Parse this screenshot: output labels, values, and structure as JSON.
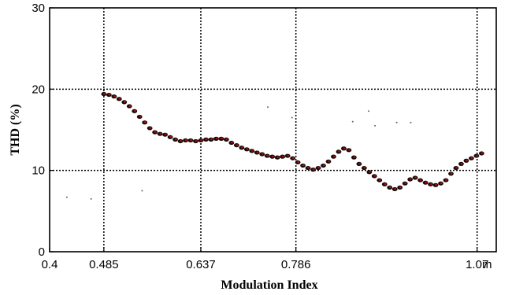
{
  "chart_data": {
    "type": "scatter",
    "title": "",
    "xlabel": "Modulation Index",
    "ylabel": "THD (%)",
    "x_unit_label": "m",
    "xlim": [
      0.4,
      1.1
    ],
    "ylim": [
      0,
      30
    ],
    "x_ticks": [
      0.4,
      0.485,
      0.637,
      0.786,
      1.07
    ],
    "x_tick_labels": [
      "0.4",
      "0.485",
      "0.637",
      "0.786",
      "1.07"
    ],
    "y_ticks": [
      0,
      10,
      20,
      30
    ],
    "y_tick_labels": [
      "0",
      "10",
      "20",
      "30"
    ],
    "grid": true,
    "series": [
      {
        "color": "#1a0a0a",
        "accent_color": "#b01010",
        "x": [
          0.485,
          0.493,
          0.501,
          0.509,
          0.517,
          0.525,
          0.533,
          0.541,
          0.549,
          0.557,
          0.565,
          0.573,
          0.581,
          0.589,
          0.597,
          0.605,
          0.613,
          0.621,
          0.629,
          0.637,
          0.645,
          0.653,
          0.661,
          0.669,
          0.677,
          0.685,
          0.693,
          0.701,
          0.709,
          0.717,
          0.725,
          0.733,
          0.741,
          0.749,
          0.757,
          0.765,
          0.773,
          0.781,
          0.789,
          0.797,
          0.805,
          0.813,
          0.821,
          0.829,
          0.837,
          0.845,
          0.853,
          0.861,
          0.869,
          0.877,
          0.885,
          0.893,
          0.901,
          0.909,
          0.917,
          0.925,
          0.933,
          0.941,
          0.949,
          0.957,
          0.965,
          0.973,
          0.981,
          0.989,
          0.997,
          1.005,
          1.013,
          1.021,
          1.029,
          1.037,
          1.045,
          1.053,
          1.061,
          1.069,
          1.077
        ],
        "y": [
          19.4,
          19.3,
          19.1,
          18.8,
          18.4,
          17.9,
          17.3,
          16.6,
          15.9,
          15.2,
          14.7,
          14.5,
          14.4,
          14.1,
          13.8,
          13.6,
          13.7,
          13.7,
          13.6,
          13.7,
          13.8,
          13.8,
          13.9,
          13.9,
          13.8,
          13.4,
          13.1,
          12.8,
          12.6,
          12.4,
          12.2,
          12.0,
          11.8,
          11.7,
          11.6,
          11.7,
          11.8,
          11.5,
          11.0,
          10.6,
          10.3,
          10.1,
          10.3,
          10.6,
          11.1,
          11.7,
          12.3,
          12.7,
          12.5,
          11.6,
          10.8,
          10.3,
          9.8,
          9.3,
          8.8,
          8.3,
          7.9,
          7.7,
          7.9,
          8.4,
          8.9,
          9.1,
          8.8,
          8.5,
          8.3,
          8.2,
          8.4,
          8.8,
          9.6,
          10.3,
          10.8,
          11.2,
          11.5,
          11.8,
          12.1
        ]
      }
    ],
    "stray_points": {
      "color": "#666666",
      "x": [
        0.427,
        0.465,
        0.545,
        0.742,
        0.78,
        0.875,
        0.9,
        0.91,
        0.944,
        0.966
      ],
      "y": [
        6.7,
        6.5,
        7.5,
        17.8,
        16.5,
        16.0,
        17.3,
        15.5,
        15.9,
        15.9
      ]
    }
  }
}
